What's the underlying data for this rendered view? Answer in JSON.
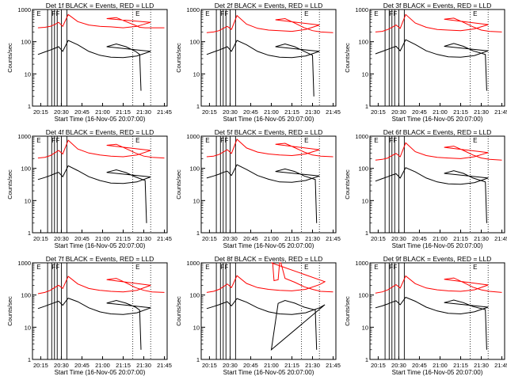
{
  "ylabel": "Counts/sec",
  "xlabel": "Start Time (16-Nov-05 20:07:00)",
  "colors": {
    "events": "#000000",
    "lld": "#ff0000",
    "axes": "#000000"
  },
  "chart_data": [
    {
      "type": "line",
      "title": "Det 1f BLACK = Events, RED = LLD",
      "ylim": [
        1,
        1000
      ],
      "ylog": true,
      "x_ticks": [
        "20:15",
        "20:30",
        "20:45",
        "21:00",
        "21:15",
        "21:30",
        "21:45"
      ],
      "y_ticks": [
        "1",
        "10",
        "100",
        "1000"
      ],
      "flags": [
        "E",
        "F",
        "F",
        "E"
      ],
      "series": [
        {
          "x": [
            20.13,
            20.18,
            20.22,
            20.25,
            20.28,
            20.31,
            20.35,
            20.42,
            20.5,
            20.58,
            20.66,
            20.75,
            20.85,
            20.95,
            21.03,
            21.1,
            21.17,
            21.24,
            21.27,
            21.31,
            21.36,
            21.45
          ],
          "y": [
            270,
            280,
            300,
            340,
            400,
            300,
            700,
            420,
            330,
            300,
            290,
            270,
            300,
            400,
            520,
            560,
            420,
            320,
            280,
            270,
            270,
            270
          ]
        },
        {
          "x": [
            20.13,
            20.18,
            20.22,
            20.25,
            20.28,
            20.31,
            20.35,
            20.42,
            20.5,
            20.58,
            20.66,
            20.75,
            20.85,
            20.95,
            21.03,
            21.1,
            21.17,
            21.24,
            21.27,
            21.28
          ],
          "y": [
            40,
            48,
            55,
            62,
            70,
            50,
            110,
            80,
            50,
            38,
            33,
            32,
            36,
            50,
            70,
            85,
            70,
            50,
            40,
            3
          ]
        }
      ]
    },
    {
      "type": "line",
      "title": "Det 2f BLACK = Events, RED = LLD",
      "ylim": [
        1,
        1000
      ],
      "ylog": true,
      "x_ticks": [
        "20:15",
        "20:30",
        "20:45",
        "21:00",
        "21:15",
        "21:30",
        "21:45"
      ],
      "y_ticks": [
        "1",
        "10",
        "100",
        "1000"
      ],
      "flags": [
        "E",
        "F",
        "F",
        "E"
      ],
      "series": [
        {
          "x": [
            20.13,
            20.18,
            20.22,
            20.25,
            20.28,
            20.31,
            20.35,
            20.42,
            20.5,
            20.58,
            20.66,
            20.75,
            20.85,
            20.95,
            21.03,
            21.1,
            21.17,
            21.24,
            21.3,
            21.36,
            21.45
          ],
          "y": [
            190,
            200,
            220,
            260,
            300,
            240,
            650,
            350,
            260,
            230,
            220,
            210,
            240,
            330,
            480,
            520,
            380,
            270,
            220,
            200,
            190
          ]
        },
        {
          "x": [
            20.13,
            20.18,
            20.22,
            20.25,
            20.28,
            20.31,
            20.35,
            20.42,
            20.5,
            20.58,
            20.66,
            20.75,
            20.85,
            20.95,
            21.03,
            21.1,
            21.17,
            21.24,
            21.3,
            21.31
          ],
          "y": [
            40,
            48,
            55,
            62,
            70,
            50,
            110,
            80,
            50,
            38,
            33,
            32,
            36,
            50,
            70,
            85,
            70,
            50,
            38,
            2
          ]
        }
      ]
    },
    {
      "type": "line",
      "title": "Det 3f BLACK = Events, RED = LLD",
      "ylim": [
        1,
        1000
      ],
      "ylog": true,
      "x_ticks": [
        "20:15",
        "20:30",
        "20:45",
        "21:00",
        "21:15",
        "21:30",
        "21:45"
      ],
      "y_ticks": [
        "1",
        "10",
        "100",
        "1000"
      ],
      "flags": [
        "E",
        "F",
        "F",
        "E"
      ],
      "series": [
        {
          "x": [
            20.13,
            20.18,
            20.22,
            20.25,
            20.28,
            20.31,
            20.35,
            20.42,
            20.5,
            20.58,
            20.66,
            20.75,
            20.85,
            20.95,
            21.03,
            21.1,
            21.17,
            21.24,
            21.3,
            21.36,
            21.45
          ],
          "y": [
            200,
            210,
            240,
            280,
            330,
            260,
            700,
            380,
            280,
            240,
            230,
            220,
            250,
            340,
            500,
            540,
            400,
            290,
            230,
            210,
            200
          ]
        },
        {
          "x": [
            20.13,
            20.18,
            20.22,
            20.25,
            20.28,
            20.31,
            20.35,
            20.42,
            20.5,
            20.58,
            20.66,
            20.75,
            20.85,
            20.95,
            21.03,
            21.1,
            21.17,
            21.24,
            21.33,
            21.34
          ],
          "y": [
            42,
            50,
            58,
            65,
            72,
            52,
            115,
            82,
            52,
            40,
            34,
            33,
            37,
            52,
            72,
            88,
            72,
            52,
            40,
            3
          ]
        }
      ]
    },
    {
      "type": "line",
      "title": "Det 4f BLACK = Events, RED = LLD",
      "ylim": [
        1,
        1000
      ],
      "ylog": true,
      "x_ticks": [
        "20:15",
        "20:30",
        "20:45",
        "21:00",
        "21:15",
        "21:30",
        "21:45"
      ],
      "y_ticks": [
        "1",
        "10",
        "100",
        "1000"
      ],
      "flags": [
        "E",
        "F",
        "F",
        "E"
      ],
      "series": [
        {
          "x": [
            20.13,
            20.18,
            20.22,
            20.25,
            20.28,
            20.31,
            20.35,
            20.42,
            20.5,
            20.58,
            20.66,
            20.75,
            20.85,
            20.95,
            21.03,
            21.1,
            21.17,
            21.24,
            21.3,
            21.36,
            21.45
          ],
          "y": [
            210,
            220,
            250,
            300,
            360,
            280,
            750,
            400,
            300,
            260,
            240,
            230,
            260,
            360,
            520,
            560,
            410,
            300,
            240,
            220,
            210
          ]
        },
        {
          "x": [
            20.13,
            20.18,
            20.22,
            20.25,
            20.28,
            20.31,
            20.35,
            20.42,
            20.5,
            20.58,
            20.66,
            20.75,
            20.85,
            20.95,
            21.03,
            21.1,
            21.17,
            21.24,
            21.31,
            21.32
          ],
          "y": [
            45,
            52,
            60,
            68,
            75,
            55,
            120,
            85,
            55,
            42,
            35,
            34,
            38,
            54,
            75,
            90,
            74,
            54,
            42,
            2
          ]
        }
      ]
    },
    {
      "type": "line",
      "title": "Det 5f BLACK = Events, RED = LLD",
      "ylim": [
        1,
        1000
      ],
      "ylog": true,
      "x_ticks": [
        "20:15",
        "20:30",
        "20:45",
        "21:00",
        "21:15",
        "21:30",
        "21:45"
      ],
      "y_ticks": [
        "1",
        "10",
        "100",
        "1000"
      ],
      "flags": [
        "E",
        "F",
        "F",
        "E"
      ],
      "series": [
        {
          "x": [
            20.13,
            20.18,
            20.22,
            20.25,
            20.28,
            20.31,
            20.35,
            20.42,
            20.5,
            20.58,
            20.66,
            20.75,
            20.85,
            20.95,
            21.03,
            21.1,
            21.17,
            21.24,
            21.3,
            21.36,
            21.45
          ],
          "y": [
            230,
            240,
            270,
            320,
            380,
            290,
            800,
            430,
            320,
            280,
            260,
            250,
            280,
            380,
            560,
            600,
            440,
            320,
            260,
            240,
            230
          ]
        },
        {
          "x": [
            20.13,
            20.18,
            20.22,
            20.25,
            20.28,
            20.31,
            20.35,
            20.42,
            20.5,
            20.58,
            20.66,
            20.75,
            20.85,
            20.95,
            21.03,
            21.1,
            21.17,
            21.24,
            21.32,
            21.33
          ],
          "y": [
            50,
            58,
            66,
            75,
            82,
            60,
            130,
            92,
            60,
            46,
            38,
            37,
            42,
            58,
            80,
            96,
            80,
            58,
            45,
            2
          ]
        }
      ]
    },
    {
      "type": "line",
      "title": "Det 6f BLACK = Events, RED = LLD",
      "ylim": [
        1,
        1000
      ],
      "ylog": true,
      "x_ticks": [
        "20:15",
        "20:30",
        "20:45",
        "21:00",
        "21:15",
        "21:30",
        "21:45"
      ],
      "y_ticks": [
        "1",
        "10",
        "100",
        "1000"
      ],
      "flags": [
        "E",
        "F",
        "F",
        "E"
      ],
      "series": [
        {
          "x": [
            20.13,
            20.18,
            20.22,
            20.25,
            20.28,
            20.31,
            20.35,
            20.42,
            20.5,
            20.58,
            20.66,
            20.75,
            20.85,
            20.95,
            21.03,
            21.1,
            21.17,
            21.24,
            21.3,
            21.36,
            21.45
          ],
          "y": [
            180,
            190,
            210,
            250,
            290,
            230,
            620,
            330,
            250,
            220,
            210,
            200,
            230,
            310,
            450,
            490,
            360,
            260,
            210,
            190,
            180
          ]
        },
        {
          "x": [
            20.13,
            20.18,
            20.22,
            20.25,
            20.28,
            20.31,
            20.35,
            20.42,
            20.5,
            20.58,
            20.66,
            20.75,
            20.85,
            20.95,
            21.03,
            21.1,
            21.17,
            21.24,
            21.33,
            21.34
          ],
          "y": [
            40,
            48,
            55,
            62,
            68,
            50,
            105,
            78,
            50,
            38,
            33,
            32,
            36,
            50,
            70,
            84,
            70,
            50,
            38,
            2
          ]
        }
      ]
    },
    {
      "type": "line",
      "title": "Det 7f BLACK = Events, RED = LLD",
      "ylim": [
        1,
        1000
      ],
      "ylog": true,
      "x_ticks": [
        "20:15",
        "20:30",
        "20:45",
        "21:00",
        "21:15",
        "21:30",
        "21:45"
      ],
      "y_ticks": [
        "1",
        "10",
        "100",
        "1000"
      ],
      "flags": [
        "E",
        "F",
        "F",
        "E"
      ],
      "series": [
        {
          "x": [
            20.13,
            20.18,
            20.22,
            20.25,
            20.28,
            20.31,
            20.35,
            20.42,
            20.5,
            20.58,
            20.66,
            20.75,
            20.85,
            20.95,
            21.03,
            21.1,
            21.17,
            21.24,
            21.3,
            21.36,
            21.45
          ],
          "y": [
            110,
            120,
            140,
            170,
            200,
            160,
            380,
            220,
            160,
            140,
            130,
            125,
            140,
            200,
            300,
            330,
            240,
            170,
            140,
            125,
            120
          ]
        },
        {
          "x": [
            20.13,
            20.18,
            20.22,
            20.25,
            20.28,
            20.31,
            20.35,
            20.42,
            20.5,
            20.58,
            20.66,
            20.75,
            20.85,
            20.95,
            21.03,
            21.1,
            21.17,
            21.24,
            21.27,
            21.28
          ],
          "y": [
            38,
            45,
            52,
            58,
            64,
            48,
            80,
            62,
            40,
            30,
            26,
            25,
            28,
            40,
            56,
            68,
            56,
            42,
            34,
            2
          ]
        }
      ]
    },
    {
      "type": "line",
      "title": "Det 8f BLACK = Events, RED = LLD",
      "ylim": [
        1,
        1000
      ],
      "ylog": true,
      "x_ticks": [
        "20:15",
        "20:30",
        "20:45",
        "21:00",
        "21:15",
        "21:30",
        "21:45"
      ],
      "y_ticks": [
        "1",
        "10",
        "100",
        "1000"
      ],
      "flags": [
        "E",
        "F",
        "F",
        "E"
      ],
      "series": [
        {
          "x": [
            20.13,
            20.18,
            20.22,
            20.25,
            20.28,
            20.31,
            20.35,
            20.42,
            20.5,
            20.58,
            20.66,
            20.75,
            20.85,
            20.95,
            20.99,
            21.0,
            21.01,
            21.02,
            21.05,
            21.06,
            21.07,
            21.1,
            21.17,
            21.24,
            21.3,
            21.36,
            21.45
          ],
          "y": [
            120,
            130,
            150,
            180,
            220,
            170,
            400,
            230,
            170,
            150,
            140,
            135,
            150,
            210,
            260,
            1000,
            1000,
            280,
            300,
            1000,
            1000,
            330,
            250,
            180,
            150,
            130,
            125
          ]
        },
        {
          "x": [
            20.13,
            20.18,
            20.22,
            20.25,
            20.28,
            20.31,
            20.35,
            20.42,
            20.5,
            20.58,
            20.66,
            20.75,
            20.85,
            20.95,
            20.99,
            21.0,
            21.05,
            21.1,
            21.17,
            21.24,
            21.32,
            21.33
          ],
          "y": [
            38,
            44,
            50,
            56,
            62,
            46,
            78,
            60,
            40,
            30,
            26,
            25,
            28,
            40,
            50,
            2,
            55,
            68,
            56,
            42,
            34,
            2
          ]
        }
      ]
    },
    {
      "type": "line",
      "title": "Det 9f BLACK = Events, RED = LLD",
      "ylim": [
        1,
        1000
      ],
      "ylog": true,
      "x_ticks": [
        "20:15",
        "20:30",
        "20:45",
        "21:00",
        "21:15",
        "21:30",
        "21:45"
      ],
      "y_ticks": [
        "1",
        "10",
        "100",
        "1000"
      ],
      "flags": [
        "E",
        "F",
        "F",
        "E"
      ],
      "series": [
        {
          "x": [
            20.13,
            20.18,
            20.22,
            20.25,
            20.28,
            20.31,
            20.35,
            20.42,
            20.5,
            20.58,
            20.66,
            20.75,
            20.85,
            20.95,
            21.03,
            21.1,
            21.17,
            21.24,
            21.3,
            21.36,
            21.45
          ],
          "y": [
            115,
            125,
            145,
            175,
            210,
            165,
            390,
            225,
            165,
            145,
            135,
            130,
            145,
            205,
            310,
            340,
            245,
            175,
            145,
            130,
            120
          ]
        },
        {
          "x": [
            20.13,
            20.18,
            20.22,
            20.25,
            20.28,
            20.31,
            20.35,
            20.42,
            20.5,
            20.58,
            20.66,
            20.75,
            20.85,
            20.95,
            21.03,
            21.1,
            21.17,
            21.24,
            21.33,
            21.34
          ],
          "y": [
            40,
            46,
            53,
            60,
            66,
            50,
            85,
            64,
            42,
            32,
            27,
            26,
            30,
            42,
            58,
            70,
            58,
            44,
            35,
            2
          ]
        }
      ]
    }
  ]
}
